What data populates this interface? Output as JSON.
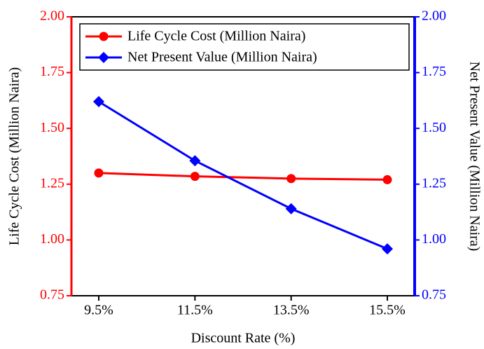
{
  "chart_data": {
    "type": "line",
    "x_label": "Discount Rate (%)",
    "y_label": "Life Cycle Cost (Million Naira)",
    "y2_label": "Net Present Value (Million Naira)",
    "categories": [
      "9.5%",
      "11.5%",
      "13.5%",
      "15.5%"
    ],
    "series": [
      {
        "name": "Life Cycle Cost (Million Naira)",
        "color": "#ff0000",
        "marker": "circle",
        "axis": "y",
        "values": [
          1.3,
          1.285,
          1.275,
          1.27
        ]
      },
      {
        "name": "Net Present Value (Million Naira)",
        "color": "#0000ff",
        "marker": "diamond",
        "axis": "y2",
        "values": [
          1.62,
          1.355,
          1.14,
          0.96
        ]
      }
    ],
    "ylim": [
      0.75,
      2.0
    ],
    "yticks": [
      {
        "value": 0.75,
        "label": "0.75"
      },
      {
        "value": 1.0,
        "label": "1.00"
      },
      {
        "value": 1.25,
        "label": "1.25"
      },
      {
        "value": 1.5,
        "label": "1.50"
      },
      {
        "value": 1.75,
        "label": "1.75"
      },
      {
        "value": 2.0,
        "label": "2.00"
      }
    ],
    "y2lim": [
      0.75,
      2.0
    ],
    "y2ticks": [
      {
        "value": 0.75,
        "label": "0.75"
      },
      {
        "value": 1.0,
        "label": "1.00"
      },
      {
        "value": 1.25,
        "label": "1.25"
      },
      {
        "value": 1.5,
        "label": "1.50"
      },
      {
        "value": 1.75,
        "label": "1.75"
      },
      {
        "value": 2.0,
        "label": "2.00"
      }
    ],
    "y_color": "#ff0000",
    "y2_color": "#0000ff",
    "legend": "upper left"
  }
}
